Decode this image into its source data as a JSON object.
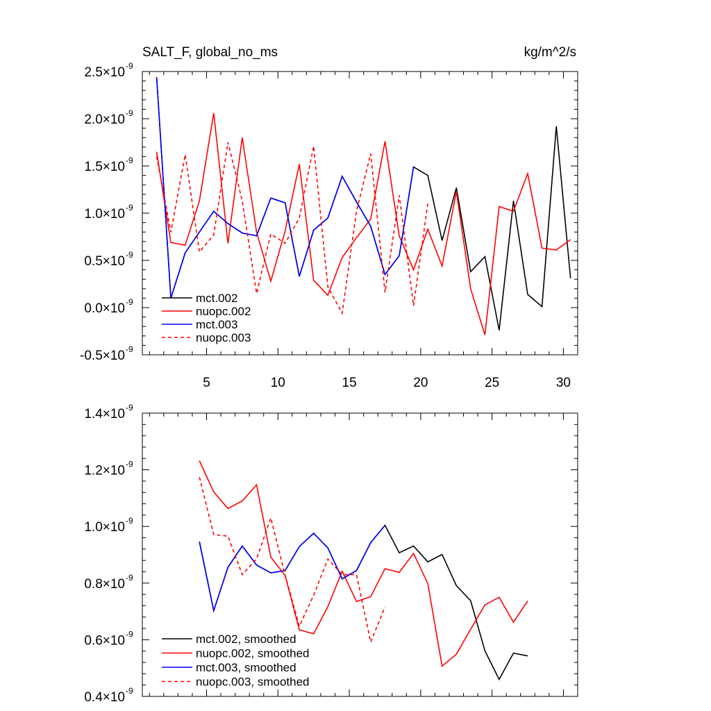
{
  "panel1": {
    "title_left": "SALT_F, global_no_ms",
    "title_right": "kg/m^2/s"
  },
  "chart_data": [
    {
      "type": "line",
      "title": "SALT_F, global_no_ms",
      "units": "kg/m^2/s",
      "xlim": [
        0.5,
        31
      ],
      "ylim": [
        -5e-10,
        2.5e-09
      ],
      "x_ticks": [
        5,
        10,
        15,
        20,
        25,
        30
      ],
      "y_ticks": [
        {
          "value": -5e-10,
          "mantissa": "-0.5",
          "times": "×",
          "base": "10",
          "exponent": "-9"
        },
        {
          "value": 0.0,
          "mantissa": "0.0",
          "times": "×",
          "base": "10",
          "exponent": "-9"
        },
        {
          "value": 5e-10,
          "mantissa": "0.5",
          "times": "×",
          "base": "10",
          "exponent": "-9"
        },
        {
          "value": 1e-09,
          "mantissa": "1.0",
          "times": "×",
          "base": "10",
          "exponent": "-9"
        },
        {
          "value": 1.5e-09,
          "mantissa": "1.5",
          "times": "×",
          "base": "10",
          "exponent": "-9"
        },
        {
          "value": 2e-09,
          "mantissa": "2.0",
          "times": "×",
          "base": "10",
          "exponent": "-9"
        },
        {
          "value": 2.5e-09,
          "mantissa": "2.5",
          "times": "×",
          "base": "10",
          "exponent": "-9"
        }
      ],
      "grid": false,
      "legend_position": "bottom-left",
      "series": [
        {
          "name": "mct.002",
          "color": "#000000",
          "dash": "solid",
          "x": [
            1.5,
            2.5,
            3.5,
            4.5,
            5.5,
            6.5,
            7.5,
            8.5,
            9.5,
            10.5,
            11.5,
            12.5,
            13.5,
            14.5,
            15.5,
            16.5,
            17.5,
            18.5,
            19.5,
            20.5,
            21.5,
            22.5,
            23.5,
            24.5,
            25.5,
            26.5,
            27.5,
            28.5,
            29.5,
            30.5
          ],
          "y": [
            2.44e-09,
            1e-10,
            5.8e-10,
            8e-10,
            1.02e-09,
            8.9e-10,
            7.9e-10,
            7.6e-10,
            1.16e-09,
            1.11e-09,
            3.3e-10,
            8.2e-10,
            9.5e-10,
            1.39e-09,
            1.12e-09,
            8.6e-10,
            3.5e-10,
            5.5e-10,
            1.49e-09,
            1.4e-09,
            7.1e-10,
            1.27e-09,
            3.8e-10,
            5.4e-10,
            -2.4e-10,
            1.13e-09,
            1.4e-10,
            1e-11,
            1.92e-09,
            3.1e-10
          ]
        },
        {
          "name": "nuopc.002",
          "color": "#ff0000",
          "dash": "solid",
          "x": [
            1.5,
            2.5,
            3.5,
            4.5,
            5.5,
            6.5,
            7.5,
            8.5,
            9.5,
            10.5,
            11.5,
            12.5,
            13.5,
            14.5,
            15.5,
            16.5,
            17.5,
            18.5,
            19.5,
            20.5,
            21.5,
            22.5,
            23.5,
            24.5,
            25.5,
            26.5,
            27.5,
            28.5,
            29.5,
            30.5
          ],
          "y": [
            1.65e-09,
            6.9e-10,
            6.6e-10,
            1.13e-09,
            2.06e-09,
            6.8e-10,
            1.8e-09,
            8e-10,
            2.8e-10,
            8.1e-10,
            1.52e-09,
            2.9e-10,
            1.3e-10,
            5.3e-10,
            7.4e-10,
            9.4e-10,
            1.76e-09,
            7.6e-10,
            4e-10,
            8.3e-10,
            4.4e-10,
            1.23e-09,
            2e-10,
            -2.9e-10,
            1.07e-09,
            1.02e-09,
            1.42e-09,
            6.3e-10,
            6.1e-10,
            7.2e-10
          ]
        },
        {
          "name": "mct.003",
          "color": "#0000ff",
          "dash": "solid",
          "x": [
            1.5,
            2.5,
            3.5,
            4.5,
            5.5,
            6.5,
            7.5,
            8.5,
            9.5,
            10.5,
            11.5,
            12.5,
            13.5,
            14.5,
            15.5,
            16.5,
            17.5,
            18.5,
            19.5
          ],
          "y": [
            2.44e-09,
            1e-10,
            5.8e-10,
            8e-10,
            1.02e-09,
            8.9e-10,
            7.9e-10,
            7.6e-10,
            1.16e-09,
            1.11e-09,
            3.3e-10,
            8.2e-10,
            9.5e-10,
            1.39e-09,
            1.12e-09,
            8.6e-10,
            3.5e-10,
            5.5e-10,
            1.49e-09
          ]
        },
        {
          "name": "nuopc.003",
          "color": "#ff0000",
          "dash": "dashed",
          "x": [
            1.5,
            2.5,
            3.5,
            4.5,
            5.5,
            6.5,
            7.5,
            8.5,
            9.5,
            10.5,
            11.5,
            12.5,
            13.5,
            14.5,
            15.5,
            16.5,
            17.5,
            18.5,
            19.5,
            20.5
          ],
          "y": [
            1.6e-09,
            8e-10,
            1.62e-09,
            5.9e-10,
            7.7e-10,
            1.75e-09,
            1.13e-09,
            1.5e-10,
            7.8e-10,
            6.8e-10,
            9.5e-10,
            1.71e-09,
            2.2e-10,
            -6e-11,
            1.02e-09,
            1.63e-09,
            1.6e-10,
            1.19e-09,
            2e-11,
            1.1e-09
          ]
        }
      ]
    },
    {
      "type": "line",
      "xlim": [
        0.5,
        31
      ],
      "ylim": [
        4e-10,
        1.4e-09
      ],
      "y_ticks": [
        {
          "value": 4e-10,
          "mantissa": "0.4",
          "times": "×",
          "base": "10",
          "exponent": "-9"
        },
        {
          "value": 6e-10,
          "mantissa": "0.6",
          "times": "×",
          "base": "10",
          "exponent": "-9"
        },
        {
          "value": 8e-10,
          "mantissa": "0.8",
          "times": "×",
          "base": "10",
          "exponent": "-9"
        },
        {
          "value": 1e-09,
          "mantissa": "1.0",
          "times": "×",
          "base": "10",
          "exponent": "-9"
        },
        {
          "value": 1.2e-09,
          "mantissa": "1.2",
          "times": "×",
          "base": "10",
          "exponent": "-9"
        },
        {
          "value": 1.4e-09,
          "mantissa": "1.4",
          "times": "×",
          "base": "10",
          "exponent": "-9"
        }
      ],
      "grid": false,
      "legend_position": "bottom-left",
      "series": [
        {
          "name": "mct.002, smoothed",
          "color": "#000000",
          "dash": "solid",
          "x": [
            4.5,
            5.5,
            6.5,
            7.5,
            8.5,
            9.5,
            10.5,
            11.5,
            12.5,
            13.5,
            14.5,
            15.5,
            16.5,
            17.5,
            18.5,
            19.5,
            20.5,
            21.5,
            22.5,
            23.5,
            24.5,
            25.5,
            26.5,
            27.5
          ],
          "y": [
            9.46e-10,
            7.03e-10,
            8.56e-10,
            9.31e-10,
            8.64e-10,
            8.36e-10,
            8.44e-10,
            9.29e-10,
            9.76e-10,
            9.24e-10,
            8.15e-10,
            8.44e-10,
            9.43e-10,
            1.004e-09,
            9.07e-10,
            9.31e-10,
            8.75e-10,
            9.01e-10,
            7.91e-10,
            7.38e-10,
            5.61e-10,
            4.6e-10,
            5.53e-10,
            5.43e-10
          ]
        },
        {
          "name": "nuopc.002, smoothed",
          "color": "#ff0000",
          "dash": "solid",
          "x": [
            4.5,
            5.5,
            6.5,
            7.5,
            8.5,
            9.5,
            10.5,
            11.5,
            12.5,
            13.5,
            14.5,
            15.5,
            16.5,
            17.5,
            18.5,
            19.5,
            20.5,
            21.5,
            22.5,
            23.5,
            24.5,
            25.5,
            26.5,
            27.5
          ],
          "y": [
            1.232e-09,
            1.122e-09,
            1.063e-09,
            1.09e-09,
            1.147e-09,
            8.92e-10,
            8.27e-10,
            6.35e-10,
            6.21e-10,
            7.17e-10,
            8.42e-10,
            7.35e-10,
            7.52e-10,
            8.51e-10,
            8.38e-10,
            9.05e-10,
            7.99e-10,
            5.07e-10,
            5.49e-10,
            6.37e-10,
            7.23e-10,
            7.5e-10,
            6.62e-10,
            7.37e-10
          ]
        },
        {
          "name": "mct.003, smoothed",
          "color": "#0000ff",
          "dash": "solid",
          "x": [
            4.5,
            5.5,
            6.5,
            7.5,
            8.5,
            9.5,
            10.5,
            11.5,
            12.5,
            13.5,
            14.5,
            15.5,
            16.5,
            17.5
          ],
          "y": [
            9.46e-10,
            7.03e-10,
            8.56e-10,
            9.31e-10,
            8.64e-10,
            8.36e-10,
            8.44e-10,
            9.29e-10,
            9.76e-10,
            9.24e-10,
            8.15e-10,
            8.44e-10,
            9.43e-10,
            1.004e-09
          ]
        },
        {
          "name": "nuopc.003, smoothed",
          "color": "#ff0000",
          "dash": "dashed",
          "x": [
            4.5,
            5.5,
            6.5,
            7.5,
            8.5,
            9.5,
            10.5,
            11.5,
            12.5,
            13.5,
            14.5,
            15.5,
            16.5,
            17.5
          ],
          "y": [
            1.174e-09,
            9.71e-10,
            9.66e-10,
            8.3e-10,
            8.85e-10,
            1.03e-09,
            8.29e-10,
            6.48e-10,
            7.57e-10,
            8.85e-10,
            8.3e-10,
            8.3e-10,
            5.92e-10,
            7.16e-10
          ]
        }
      ]
    }
  ]
}
